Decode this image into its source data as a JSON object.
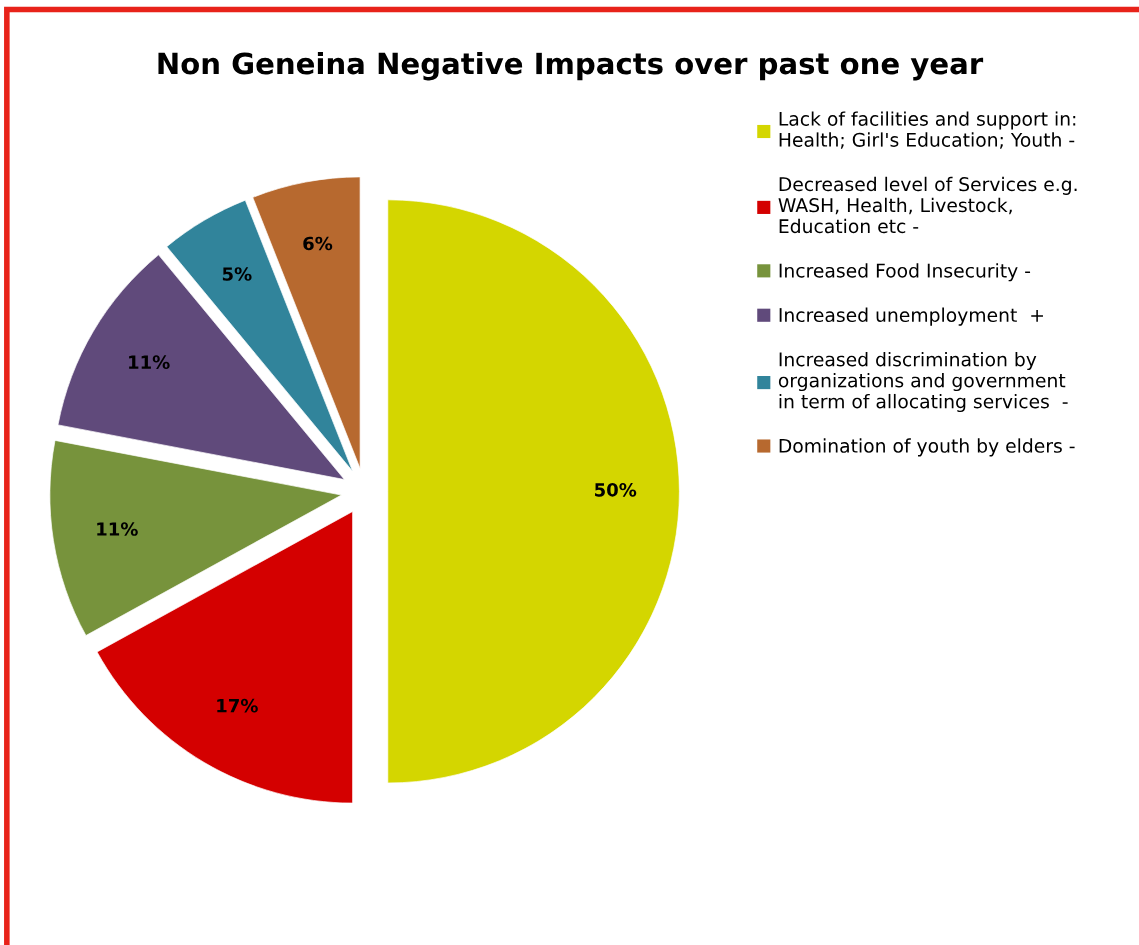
{
  "chart_data": {
    "type": "pie",
    "title": "Non Geneina Negative Impacts over past one year",
    "categories": [
      "Lack of facilities and support in:\nHealth; Girl's Education; Youth -",
      "Decreased level of Services e.g.\nWASH, Health, Livestock,\nEducation etc -",
      "Increased Food Insecurity -",
      "Increased unemployment  +",
      "Increased discrimination by\norganizations and government\nin term of allocating services  -",
      "Domination of youth by elders -"
    ],
    "values": [
      50,
      17,
      11,
      11,
      5,
      6
    ],
    "value_labels": [
      "50%",
      "17%",
      "11%",
      "11%",
      "5%",
      "6%"
    ],
    "colors": [
      "#d4d600",
      "#d40000",
      "#77933c",
      "#604a7b",
      "#31849b",
      "#b7692f"
    ],
    "legend": "right"
  }
}
